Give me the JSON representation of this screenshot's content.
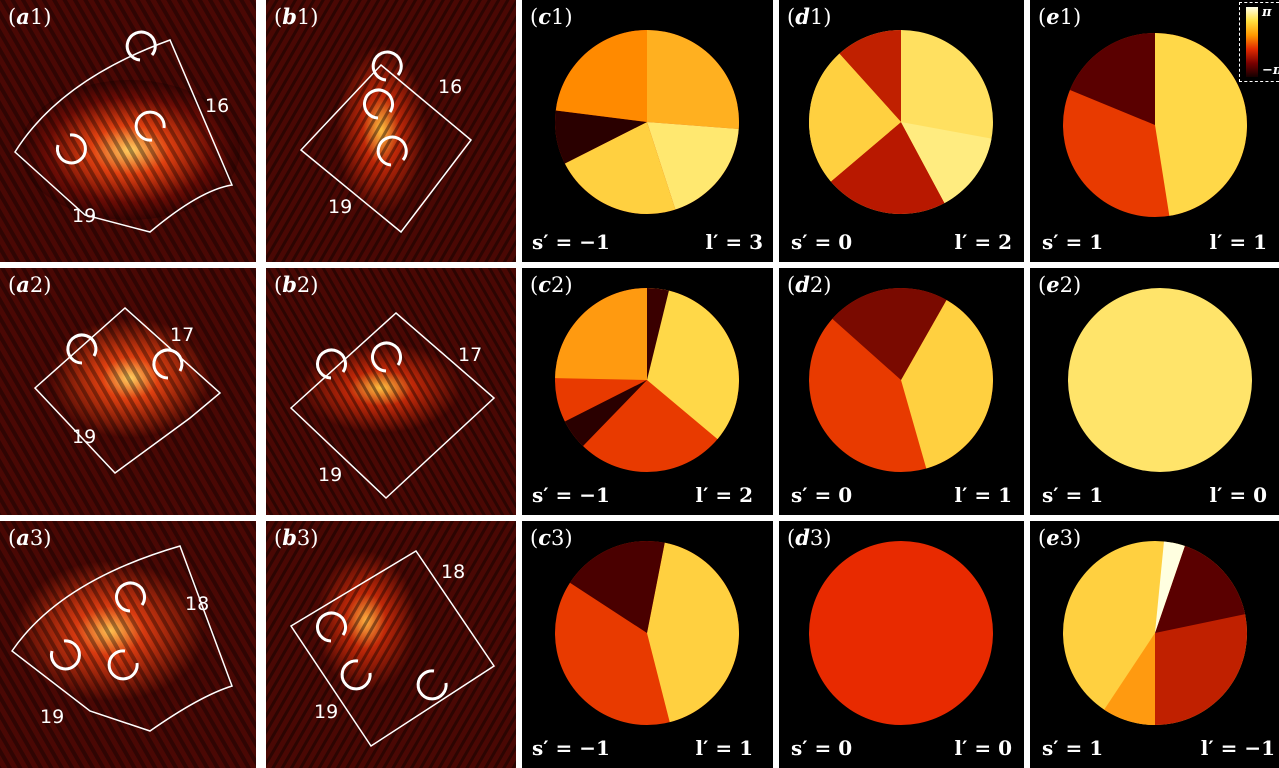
{
  "figure": {
    "rows": [
      {
        "a": {
          "label_letter": "a",
          "label_num": "1",
          "num1": "16",
          "num2": "19"
        },
        "b": {
          "label_letter": "b",
          "label_num": "1",
          "num1": "16",
          "num2": "19"
        },
        "c": {
          "label_letter": "c",
          "label_num": "1",
          "s": "s′ = −1",
          "l": "l′ = 3"
        },
        "d": {
          "label_letter": "d",
          "label_num": "1",
          "s": "s′ = 0",
          "l": "l′ = 2"
        },
        "e": {
          "label_letter": "e",
          "label_num": "1",
          "s": "s′ = 1",
          "l": "l′ = 1"
        }
      },
      {
        "a": {
          "label_letter": "a",
          "label_num": "2",
          "num1": "17",
          "num2": "19"
        },
        "b": {
          "label_letter": "b",
          "label_num": "2",
          "num1": "17",
          "num2": "19"
        },
        "c": {
          "label_letter": "c",
          "label_num": "2",
          "s": "s′ = −1",
          "l": "l′ = 2"
        },
        "d": {
          "label_letter": "d",
          "label_num": "2",
          "s": "s′ = 0",
          "l": "l′ = 1"
        },
        "e": {
          "label_letter": "e",
          "label_num": "2",
          "s": "s′ = 1",
          "l": "l′ = 0"
        }
      },
      {
        "a": {
          "label_letter": "a",
          "label_num": "3",
          "num1": "18",
          "num2": "19"
        },
        "b": {
          "label_letter": "b",
          "label_num": "3",
          "num1": "18",
          "num2": "19"
        },
        "c": {
          "label_letter": "c",
          "label_num": "3",
          "s": "s′ = −1",
          "l": "l′ = 1"
        },
        "d": {
          "label_letter": "d",
          "label_num": "3",
          "s": "s′ = 0",
          "l": "l′ = 0"
        },
        "e": {
          "label_letter": "e",
          "label_num": "3",
          "s": "s′ = 1",
          "l": "l′ = −1"
        }
      }
    ],
    "colorbar": {
      "max_label": "π",
      "min_label": "−π"
    },
    "colors": {
      "panel_bg": "#000000",
      "annotation": "#ffffff",
      "speckle_bg": "#5a0a05"
    }
  }
}
